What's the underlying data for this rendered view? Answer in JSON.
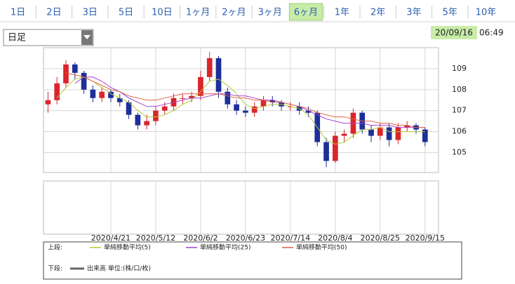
{
  "tabs": [
    "1日",
    "2日",
    "3日",
    "5日",
    "10日",
    "1ヶ月",
    "2ヶ月",
    "3ヶ月",
    "6ヶ月",
    "1年",
    "2年",
    "3年",
    "5年",
    "10年"
  ],
  "selected_tab": 8,
  "dropdown": "日足",
  "timestamp": {
    "date": "20/09/16",
    "time": "06:49"
  },
  "chart_data": {
    "type": "candlestick",
    "categories": [
      null,
      null,
      null,
      null,
      null,
      null,
      null,
      "2020/4/21",
      null,
      null,
      null,
      null,
      "2020/5/12",
      null,
      null,
      null,
      null,
      "2020/6/2",
      null,
      null,
      null,
      null,
      "2020/6/23",
      null,
      null,
      null,
      null,
      "2020/7/14",
      null,
      null,
      null,
      null,
      "2020/8/4",
      null,
      null,
      null,
      null,
      "2020/8/25",
      null,
      null,
      null,
      null,
      "2020/9/15",
      null
    ],
    "open": [
      107.3,
      107.5,
      108.3,
      109.2,
      108.8,
      108.0,
      107.6,
      107.9,
      107.6,
      107.4,
      106.8,
      106.3,
      106.5,
      107.0,
      107.2,
      107.6,
      107.6,
      107.7,
      108.6,
      109.5,
      107.9,
      107.3,
      107.0,
      106.9,
      107.2,
      107.5,
      107.4,
      107.2,
      107.2,
      107.0,
      106.9,
      105.5,
      104.6,
      105.8,
      105.9,
      106.9,
      106.1,
      105.8,
      106.2,
      105.6,
      106.2,
      106.3,
      106.1,
      null
    ],
    "high": [
      107.9,
      108.6,
      109.4,
      109.3,
      108.9,
      108.2,
      108.1,
      108.0,
      107.8,
      107.5,
      106.9,
      106.8,
      107.2,
      107.4,
      107.8,
      107.8,
      107.9,
      108.9,
      109.8,
      109.6,
      108.1,
      107.5,
      107.2,
      107.4,
      107.7,
      107.7,
      107.5,
      107.4,
      107.4,
      107.2,
      107.0,
      105.7,
      106.0,
      106.1,
      107.1,
      107.0,
      106.3,
      106.4,
      106.4,
      106.4,
      106.5,
      106.4,
      106.2,
      null
    ],
    "low": [
      106.9,
      107.3,
      108.1,
      108.5,
      107.8,
      107.4,
      107.4,
      107.4,
      107.2,
      106.6,
      106.1,
      106.1,
      106.3,
      106.8,
      107.0,
      107.3,
      107.4,
      107.5,
      108.4,
      107.6,
      107.1,
      106.8,
      106.7,
      106.7,
      107.0,
      107.2,
      107.0,
      107.0,
      106.8,
      106.7,
      105.3,
      104.3,
      104.5,
      105.5,
      105.7,
      105.9,
      105.5,
      105.6,
      105.3,
      105.4,
      106.0,
      105.9,
      105.3,
      null
    ],
    "close": [
      107.5,
      108.3,
      109.2,
      108.8,
      108.0,
      107.6,
      107.9,
      107.6,
      107.4,
      106.8,
      106.3,
      106.5,
      107.0,
      107.2,
      107.6,
      107.6,
      107.7,
      108.6,
      109.5,
      107.9,
      107.3,
      107.0,
      106.9,
      107.2,
      107.5,
      107.4,
      107.2,
      107.2,
      107.0,
      106.9,
      105.5,
      104.6,
      105.8,
      105.9,
      106.9,
      106.1,
      105.8,
      106.2,
      105.6,
      106.2,
      106.3,
      106.1,
      105.5,
      null
    ],
    "up_color": "#d9262c",
    "down_color": "#1c2f9a",
    "series": [
      {
        "name": "単純移動平均(5)",
        "color": "#b5c935",
        "values": [
          null,
          107.6,
          108.1,
          108.5,
          108.6,
          108.4,
          108.1,
          107.8,
          107.6,
          107.4,
          107.0,
          106.7,
          106.7,
          106.8,
          107.0,
          107.3,
          107.5,
          107.9,
          108.4,
          108.5,
          108.2,
          107.8,
          107.3,
          107.1,
          107.2,
          107.3,
          107.3,
          107.2,
          107.1,
          106.8,
          106.2,
          105.6,
          105.4,
          105.5,
          105.8,
          106.1,
          106.1,
          106.2,
          106.0,
          106.0,
          106.0,
          106.0,
          106.0,
          null
        ]
      },
      {
        "name": "単純移動平均(25)",
        "color": "#a23fd2",
        "values": [
          null,
          null,
          null,
          108.3,
          108.6,
          108.6,
          108.4,
          108.1,
          107.9,
          107.6,
          107.4,
          107.2,
          107.2,
          107.3,
          107.4,
          107.5,
          107.6,
          107.6,
          107.7,
          107.8,
          107.8,
          107.7,
          107.7,
          107.6,
          107.5,
          107.5,
          107.4,
          107.3,
          107.2,
          107.0,
          106.8,
          106.6,
          106.5,
          106.4,
          106.4,
          106.4,
          106.3,
          106.3,
          106.3,
          106.2,
          106.2,
          106.2,
          106.2,
          null
        ]
      },
      {
        "name": "単純移動平均(50)",
        "color": "#e0603e",
        "values": [
          null,
          null,
          108.8,
          108.7,
          108.6,
          108.4,
          108.2,
          108.0,
          107.9,
          107.7,
          107.6,
          107.5,
          107.5,
          107.6,
          107.7,
          107.8,
          107.8,
          107.8,
          107.8,
          107.8,
          107.7,
          107.6,
          107.6,
          107.5,
          107.5,
          107.4,
          107.4,
          107.3,
          107.2,
          107.1,
          106.9,
          106.8,
          106.7,
          106.7,
          106.6,
          106.5,
          106.5,
          106.4,
          106.4,
          106.3,
          106.3,
          106.2,
          106.2,
          null
        ]
      }
    ],
    "ylim": [
      104.05,
      110.0
    ],
    "yticks": [
      105,
      106,
      107,
      108,
      109
    ],
    "grid": true,
    "legend_upper": "上段:",
    "legend_lower": "下段:",
    "volume_label": "出来高 単位:(株/口/枚)",
    "volume_color": "#666666"
  }
}
